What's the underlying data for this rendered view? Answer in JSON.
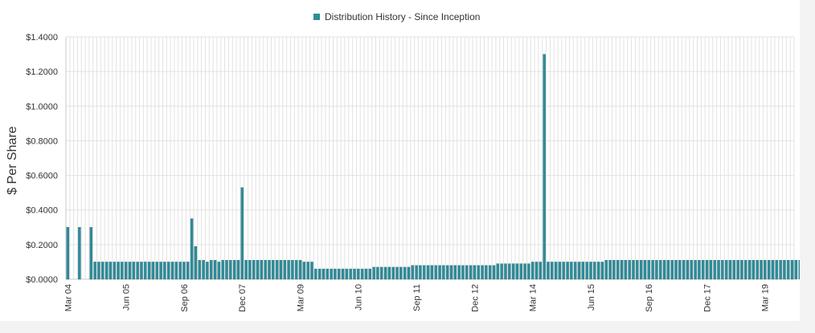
{
  "colors": {
    "bar": "#2e8c9a",
    "bar_stroke": "#1f6470",
    "grid": "#e2e2e2",
    "axis": "#c8c8c8",
    "text": "#333333",
    "bg": "#ffffff",
    "outer_bg": "#f3f3f3"
  },
  "chart_data": {
    "type": "bar",
    "legend": "Distribution History - Since Inception",
    "legend_position": "top-center",
    "ylabel": "$ Per Share",
    "xlabel": "",
    "ylim": [
      0,
      1.4
    ],
    "yticks": [
      0,
      0.2,
      0.4,
      0.6,
      0.8,
      1.0,
      1.2,
      1.4
    ],
    "ytick_labels": [
      "$0.0000",
      "$0.2000",
      "$0.4000",
      "$0.6000",
      "$0.8000",
      "$1.0000",
      "$1.2000",
      "$1.4000"
    ],
    "grid": true,
    "x_start": "2004-03",
    "x_months": 188,
    "xticks": [
      {
        "label": "Mar 04",
        "month": "2004-03"
      },
      {
        "label": "Jun 05",
        "month": "2005-06"
      },
      {
        "label": "Sep 06",
        "month": "2006-09"
      },
      {
        "label": "Dec 07",
        "month": "2007-12"
      },
      {
        "label": "Mar 09",
        "month": "2009-03"
      },
      {
        "label": "Jun 10",
        "month": "2010-06"
      },
      {
        "label": "Sep 11",
        "month": "2011-09"
      },
      {
        "label": "Dec 12",
        "month": "2012-12"
      },
      {
        "label": "Mar 14",
        "month": "2014-03"
      },
      {
        "label": "Jun 15",
        "month": "2015-06"
      },
      {
        "label": "Sep 16",
        "month": "2016-09"
      },
      {
        "label": "Dec 17",
        "month": "2017-12"
      },
      {
        "label": "Mar 19",
        "month": "2019-03"
      }
    ],
    "series": [
      {
        "data": [
          [
            "2004-03",
            0.3
          ],
          [
            "2004-06",
            0.3
          ],
          [
            "2004-09",
            0.3
          ],
          [
            "2004-10",
            0.1
          ],
          [
            "2004-11",
            0.1
          ],
          [
            "2004-12",
            0.1
          ],
          [
            "2005-01",
            0.1
          ],
          [
            "2005-02",
            0.1
          ],
          [
            "2005-03",
            0.1
          ],
          [
            "2005-04",
            0.1
          ],
          [
            "2005-05",
            0.1
          ],
          [
            "2005-06",
            0.1
          ],
          [
            "2005-07",
            0.1
          ],
          [
            "2005-08",
            0.1
          ],
          [
            "2005-09",
            0.1
          ],
          [
            "2005-10",
            0.1
          ],
          [
            "2005-11",
            0.1
          ],
          [
            "2005-12",
            0.1
          ],
          [
            "2006-01",
            0.1
          ],
          [
            "2006-02",
            0.1
          ],
          [
            "2006-03",
            0.1
          ],
          [
            "2006-04",
            0.1
          ],
          [
            "2006-05",
            0.1
          ],
          [
            "2006-06",
            0.1
          ],
          [
            "2006-07",
            0.1
          ],
          [
            "2006-08",
            0.1
          ],
          [
            "2006-09",
            0.1
          ],
          [
            "2006-10",
            0.1
          ],
          [
            "2006-11",
            0.35
          ],
          [
            "2006-12",
            0.19
          ],
          [
            "2007-01",
            0.11
          ],
          [
            "2007-02",
            0.11
          ],
          [
            "2007-03",
            0.1
          ],
          [
            "2007-04",
            0.11
          ],
          [
            "2007-05",
            0.11
          ],
          [
            "2007-06",
            0.1
          ],
          [
            "2007-07",
            0.11
          ],
          [
            "2007-08",
            0.11
          ],
          [
            "2007-09",
            0.11
          ],
          [
            "2007-10",
            0.11
          ],
          [
            "2007-11",
            0.11
          ],
          [
            "2007-12",
            0.53
          ],
          [
            "2008-01",
            0.11
          ],
          [
            "2008-02",
            0.11
          ],
          [
            "2008-03",
            0.11
          ],
          [
            "2008-04",
            0.11
          ],
          [
            "2008-05",
            0.11
          ],
          [
            "2008-06",
            0.11
          ],
          [
            "2008-07",
            0.11
          ],
          [
            "2008-08",
            0.11
          ],
          [
            "2008-09",
            0.11
          ],
          [
            "2008-10",
            0.11
          ],
          [
            "2008-11",
            0.11
          ],
          [
            "2008-12",
            0.11
          ],
          [
            "2009-01",
            0.11
          ],
          [
            "2009-02",
            0.11
          ],
          [
            "2009-03",
            0.11
          ],
          [
            "2009-04",
            0.1
          ],
          [
            "2009-05",
            0.1
          ],
          [
            "2009-06",
            0.1
          ],
          [
            "2009-07",
            0.06
          ],
          [
            "2009-08",
            0.06
          ],
          [
            "2009-09",
            0.06
          ],
          [
            "2009-10",
            0.06
          ],
          [
            "2009-11",
            0.06
          ],
          [
            "2009-12",
            0.06
          ],
          [
            "2010-01",
            0.06
          ],
          [
            "2010-02",
            0.06
          ],
          [
            "2010-03",
            0.06
          ],
          [
            "2010-04",
            0.06
          ],
          [
            "2010-05",
            0.06
          ],
          [
            "2010-06",
            0.06
          ],
          [
            "2010-07",
            0.06
          ],
          [
            "2010-08",
            0.06
          ],
          [
            "2010-09",
            0.06
          ],
          [
            "2010-10",
            0.07
          ],
          [
            "2010-11",
            0.07
          ],
          [
            "2010-12",
            0.07
          ],
          [
            "2011-01",
            0.07
          ],
          [
            "2011-02",
            0.07
          ],
          [
            "2011-03",
            0.07
          ],
          [
            "2011-04",
            0.07
          ],
          [
            "2011-05",
            0.07
          ],
          [
            "2011-06",
            0.07
          ],
          [
            "2011-07",
            0.07
          ],
          [
            "2011-08",
            0.08
          ],
          [
            "2011-09",
            0.08
          ],
          [
            "2011-10",
            0.08
          ],
          [
            "2011-11",
            0.08
          ],
          [
            "2011-12",
            0.08
          ],
          [
            "2012-01",
            0.08
          ],
          [
            "2012-02",
            0.08
          ],
          [
            "2012-03",
            0.08
          ],
          [
            "2012-04",
            0.08
          ],
          [
            "2012-05",
            0.08
          ],
          [
            "2012-06",
            0.08
          ],
          [
            "2012-07",
            0.08
          ],
          [
            "2012-08",
            0.08
          ],
          [
            "2012-09",
            0.08
          ],
          [
            "2012-10",
            0.08
          ],
          [
            "2012-11",
            0.08
          ],
          [
            "2012-12",
            0.08
          ],
          [
            "2013-01",
            0.08
          ],
          [
            "2013-02",
            0.08
          ],
          [
            "2013-03",
            0.08
          ],
          [
            "2013-04",
            0.08
          ],
          [
            "2013-05",
            0.08
          ],
          [
            "2013-06",
            0.09
          ],
          [
            "2013-07",
            0.09
          ],
          [
            "2013-08",
            0.09
          ],
          [
            "2013-09",
            0.09
          ],
          [
            "2013-10",
            0.09
          ],
          [
            "2013-11",
            0.09
          ],
          [
            "2013-12",
            0.09
          ],
          [
            "2014-01",
            0.09
          ],
          [
            "2014-02",
            0.09
          ],
          [
            "2014-03",
            0.1
          ],
          [
            "2014-04",
            0.1
          ],
          [
            "2014-05",
            0.1
          ],
          [
            "2014-06",
            1.3
          ],
          [
            "2014-07",
            0.1
          ],
          [
            "2014-08",
            0.1
          ],
          [
            "2014-09",
            0.1
          ],
          [
            "2014-10",
            0.1
          ],
          [
            "2014-11",
            0.1
          ],
          [
            "2014-12",
            0.1
          ],
          [
            "2015-01",
            0.1
          ],
          [
            "2015-02",
            0.1
          ],
          [
            "2015-03",
            0.1
          ],
          [
            "2015-04",
            0.1
          ],
          [
            "2015-05",
            0.1
          ],
          [
            "2015-06",
            0.1
          ],
          [
            "2015-07",
            0.1
          ],
          [
            "2015-08",
            0.1
          ],
          [
            "2015-09",
            0.1
          ],
          [
            "2015-10",
            0.11
          ],
          [
            "2015-11",
            0.11
          ],
          [
            "2015-12",
            0.11
          ],
          [
            "2016-01",
            0.11
          ],
          [
            "2016-02",
            0.11
          ],
          [
            "2016-03",
            0.11
          ],
          [
            "2016-04",
            0.11
          ],
          [
            "2016-05",
            0.11
          ],
          [
            "2016-06",
            0.11
          ],
          [
            "2016-07",
            0.11
          ],
          [
            "2016-08",
            0.11
          ],
          [
            "2016-09",
            0.11
          ],
          [
            "2016-10",
            0.11
          ],
          [
            "2016-11",
            0.11
          ],
          [
            "2016-12",
            0.11
          ],
          [
            "2017-01",
            0.11
          ],
          [
            "2017-02",
            0.11
          ],
          [
            "2017-03",
            0.11
          ],
          [
            "2017-04",
            0.11
          ],
          [
            "2017-05",
            0.11
          ],
          [
            "2017-06",
            0.11
          ],
          [
            "2017-07",
            0.11
          ],
          [
            "2017-08",
            0.11
          ],
          [
            "2017-09",
            0.11
          ],
          [
            "2017-10",
            0.11
          ],
          [
            "2017-11",
            0.11
          ],
          [
            "2017-12",
            0.11
          ],
          [
            "2018-01",
            0.11
          ],
          [
            "2018-02",
            0.11
          ],
          [
            "2018-03",
            0.11
          ],
          [
            "2018-04",
            0.11
          ],
          [
            "2018-05",
            0.11
          ],
          [
            "2018-06",
            0.11
          ],
          [
            "2018-07",
            0.11
          ],
          [
            "2018-08",
            0.11
          ],
          [
            "2018-09",
            0.11
          ],
          [
            "2018-10",
            0.11
          ],
          [
            "2018-11",
            0.11
          ],
          [
            "2018-12",
            0.11
          ],
          [
            "2019-01",
            0.11
          ],
          [
            "2019-02",
            0.11
          ],
          [
            "2019-03",
            0.11
          ],
          [
            "2019-04",
            0.11
          ],
          [
            "2019-05",
            0.11
          ],
          [
            "2019-06",
            0.11
          ],
          [
            "2019-07",
            0.11
          ],
          [
            "2019-08",
            0.11
          ],
          [
            "2019-09",
            0.11
          ],
          [
            "2019-10",
            0.11
          ],
          [
            "2019-11",
            0.11
          ],
          [
            "2019-12",
            0.11
          ],
          [
            "2020-01",
            0.11
          ],
          [
            "2020-02",
            0.11
          ],
          [
            "2020-03",
            0.11
          ],
          [
            "2020-04",
            0.11
          ],
          [
            "2020-05",
            0.11
          ],
          [
            "2020-06",
            0.11
          ]
        ]
      }
    ]
  }
}
